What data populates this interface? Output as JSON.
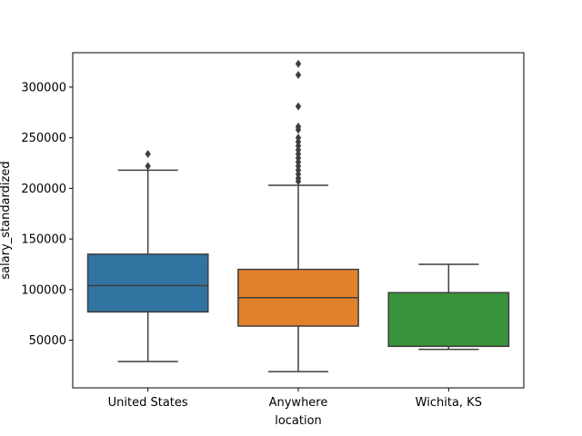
{
  "chart_data": {
    "type": "box",
    "xlabel": "location",
    "ylabel": "salary_standardized",
    "ylim": [
      3000,
      334000
    ],
    "yticks": [
      50000,
      100000,
      150000,
      200000,
      250000,
      300000
    ],
    "ytick_labels": [
      "50000",
      "100000",
      "150000",
      "200000",
      "250000",
      "300000"
    ],
    "categories": [
      "United States",
      "Anywhere",
      "Wichita, KS"
    ],
    "boxes": [
      {
        "category": "United States",
        "color": "#3274a1",
        "whisker_low": 29000,
        "q1": 78000,
        "median": 104000,
        "q3": 135000,
        "whisker_high": 218000,
        "outliers": [
          222000,
          234000
        ]
      },
      {
        "category": "Anywhere",
        "color": "#e1812c",
        "whisker_low": 19000,
        "q1": 64000,
        "median": 92000,
        "q3": 120000,
        "whisker_high": 203000,
        "outliers": [
          207000,
          210000,
          214000,
          218000,
          222000,
          226000,
          230000,
          234000,
          238000,
          242000,
          246000,
          250000,
          258000,
          261000,
          281000,
          312000,
          323000
        ]
      },
      {
        "category": "Wichita, KS",
        "color": "#3a923a",
        "whisker_low": 41000,
        "q1": 44000,
        "median": 44000,
        "q3": 97000,
        "whisker_high": 125000,
        "outliers": []
      }
    ]
  }
}
